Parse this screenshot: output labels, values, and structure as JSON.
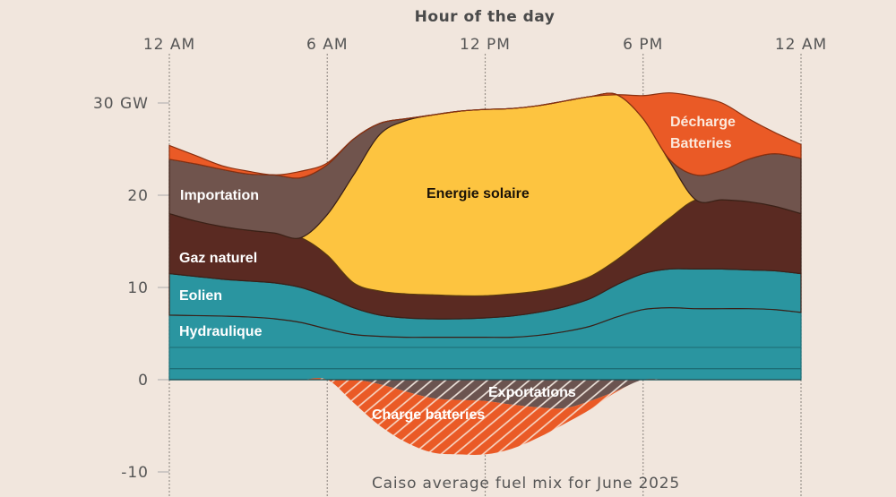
{
  "chart_data": {
    "type": "area",
    "stacked": true,
    "title": "Hour of the day",
    "caption": "Caiso average fuel mix for June 2025",
    "x": [
      0,
      1,
      2,
      3,
      4,
      5,
      6,
      7,
      8,
      9,
      10,
      11,
      12,
      13,
      14,
      15,
      16,
      17,
      18,
      19,
      20,
      21,
      22,
      23,
      24
    ],
    "xlabel": "Hour of the day",
    "xticks": [
      {
        "value": 0,
        "label": "12 AM"
      },
      {
        "value": 6,
        "label": "6 AM"
      },
      {
        "value": 12,
        "label": "12 PM"
      },
      {
        "value": 18,
        "label": "6 PM"
      },
      {
        "value": 24,
        "label": "12 AM"
      }
    ],
    "yticks": [
      {
        "value": 30,
        "label": "30 GW"
      },
      {
        "value": 20,
        "label": "20"
      },
      {
        "value": 10,
        "label": "10"
      },
      {
        "value": 0,
        "label": "0"
      },
      {
        "value": -10,
        "label": "-10"
      }
    ],
    "xlim": [
      0,
      24
    ],
    "ylim": [
      -10,
      30
    ],
    "grid": "vertical dotted lines at x ticks",
    "legend": "inline labels",
    "series": [
      {
        "name": "",
        "color": "#2a95a0",
        "values": [
          1.2,
          1.2,
          1.2,
          1.2,
          1.2,
          1.2,
          1.2,
          1.2,
          1.2,
          1.2,
          1.2,
          1.2,
          1.2,
          1.2,
          1.2,
          1.2,
          1.2,
          1.2,
          1.2,
          1.2,
          1.2,
          1.2,
          1.2,
          1.2,
          1.2
        ]
      },
      {
        "name": "",
        "color": "#2a95a0",
        "values": [
          2.3,
          2.3,
          2.3,
          2.3,
          2.3,
          2.3,
          2.3,
          2.3,
          2.3,
          2.3,
          2.3,
          2.3,
          2.3,
          2.3,
          2.3,
          2.3,
          2.3,
          2.3,
          2.3,
          2.3,
          2.3,
          2.3,
          2.3,
          2.3,
          2.3
        ]
      },
      {
        "name": "Hydraulique",
        "color": "#2a95a0",
        "values": [
          3.5,
          3.45,
          3.4,
          3.3,
          3.1,
          2.7,
          2.0,
          1.4,
          1.2,
          1.1,
          1.1,
          1.1,
          1.1,
          1.1,
          1.3,
          1.7,
          2.3,
          3.3,
          4.1,
          4.3,
          4.2,
          4.2,
          4.2,
          4.1,
          3.8
        ]
      },
      {
        "name": "Eolien",
        "color": "#2a95a0",
        "values": [
          4.5,
          4.25,
          4.0,
          3.9,
          3.9,
          3.8,
          3.5,
          2.9,
          2.3,
          2.1,
          2.0,
          2.0,
          2.1,
          2.3,
          2.5,
          2.7,
          3.0,
          3.5,
          3.9,
          4.2,
          4.3,
          4.3,
          4.2,
          4.2,
          4.2
        ]
      },
      {
        "name": "Gaz naturel",
        "color": "#5a2a22",
        "values": [
          6.5,
          6.0,
          5.7,
          5.5,
          5.4,
          5.4,
          4.5,
          2.7,
          2.6,
          2.6,
          2.6,
          2.5,
          2.4,
          2.4,
          2.3,
          2.3,
          2.4,
          2.7,
          3.7,
          5.5,
          7.5,
          7.5,
          7.4,
          7.0,
          6.5
        ]
      },
      {
        "name": "Energie solaire",
        "color": "#fdc440",
        "values": [
          0,
          0,
          0,
          0,
          0,
          0,
          4.4,
          11.7,
          17.0,
          18.8,
          19.5,
          20.0,
          20.2,
          20.1,
          20.1,
          20.0,
          19.5,
          17.9,
          13.1,
          6.2,
          0,
          0,
          0,
          0,
          0
        ]
      },
      {
        "name": "Importation",
        "color": "#70544d",
        "values": [
          5.9,
          6.2,
          6.2,
          6.1,
          6.3,
          6.5,
          5.4,
          3.9,
          1.2,
          0.2,
          0,
          0,
          0,
          0,
          0,
          0,
          0,
          0,
          0,
          0.2,
          2.7,
          3.2,
          4.6,
          5.7,
          6.0
        ]
      },
      {
        "name": "Décharge Batteries",
        "color": "#ea5a26",
        "values": [
          1.5,
          0.9,
          0.4,
          0.3,
          0,
          0.7,
          0.2,
          0,
          0,
          0,
          0,
          0,
          0,
          0,
          0,
          0,
          0,
          0,
          2.5,
          7.2,
          8.5,
          7.3,
          4.4,
          2.3,
          1.5
        ]
      },
      {
        "name": "Exportations",
        "color": "#6b5450",
        "hatched": true,
        "values": [
          0,
          0,
          0,
          0,
          0,
          0,
          0,
          0,
          -0.5,
          -1.3,
          -2.0,
          -2.2,
          -2.3,
          -2.7,
          -3.0,
          -3.1,
          -2.3,
          -1.2,
          0,
          0,
          0,
          0,
          0,
          0,
          0
        ]
      },
      {
        "name": "Charge batteries",
        "color": "#ea5a26",
        "hatched": true,
        "values": [
          0,
          0,
          0,
          0,
          0,
          0,
          0,
          -2.5,
          -4.5,
          -5.5,
          -5.9,
          -5.9,
          -5.8,
          -4.8,
          -3.3,
          -1.7,
          -0.9,
          -0.1,
          0,
          0,
          0,
          0,
          0,
          0,
          0
        ]
      }
    ],
    "labels": {
      "importation": "Importation",
      "solaire": "Energie solaire",
      "gaz": "Gaz naturel",
      "eolien": "Eolien",
      "hydraulique": "Hydraulique",
      "decharge_line1": "Décharge",
      "decharge_line2": "Batteries",
      "exportations": "Exportations",
      "charge": "Charge batteries"
    },
    "background": "#f1e6dd"
  }
}
